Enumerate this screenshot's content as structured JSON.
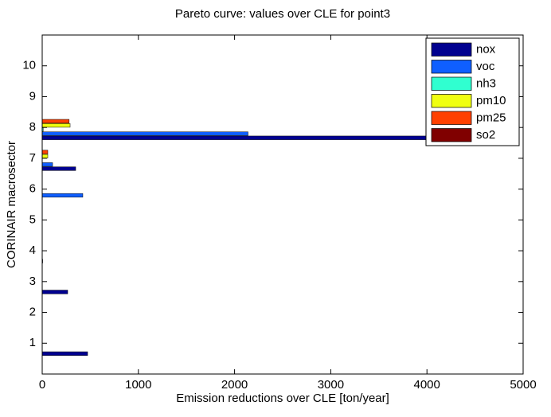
{
  "chart_data": {
    "type": "barh",
    "title": "Pareto curve: values over CLE for point3",
    "x_label": "Emission reductions over CLE [ton/year]",
    "y_label": "CORINAIR macrosector",
    "categories": [
      1,
      2,
      3,
      4,
      5,
      6,
      7,
      8,
      9,
      10
    ],
    "series": [
      {
        "name": "nox",
        "color": "#00008f",
        "values": [
          472,
          0,
          265,
          5,
          0,
          0,
          348,
          4200,
          0,
          0
        ]
      },
      {
        "name": "voc",
        "color": "#0f5fff",
        "values": [
          0,
          0,
          0,
          0,
          0,
          422,
          108,
          2140,
          0,
          0
        ]
      },
      {
        "name": "nh3",
        "color": "#30ffd0",
        "values": [
          0,
          0,
          0,
          0,
          0,
          0,
          0,
          10,
          0,
          0
        ]
      },
      {
        "name": "pm10",
        "color": "#f0ff10",
        "values": [
          0,
          0,
          0,
          0,
          0,
          0,
          58,
          290,
          0,
          0
        ]
      },
      {
        "name": "pm25",
        "color": "#ff4000",
        "values": [
          0,
          0,
          0,
          0,
          0,
          0,
          58,
          280,
          0,
          0
        ]
      },
      {
        "name": "so2",
        "color": "#800000",
        "values": [
          0,
          0,
          0,
          0,
          0,
          0,
          0,
          0,
          0,
          0
        ]
      }
    ],
    "xlim": [
      0,
      5000
    ],
    "xticks": [
      0,
      1000,
      2000,
      3000,
      4000,
      5000
    ],
    "ylim": [
      0,
      11
    ],
    "yticks": [
      1,
      2,
      3,
      4,
      5,
      6,
      7,
      8,
      9,
      10
    ],
    "legend": "upper right"
  }
}
